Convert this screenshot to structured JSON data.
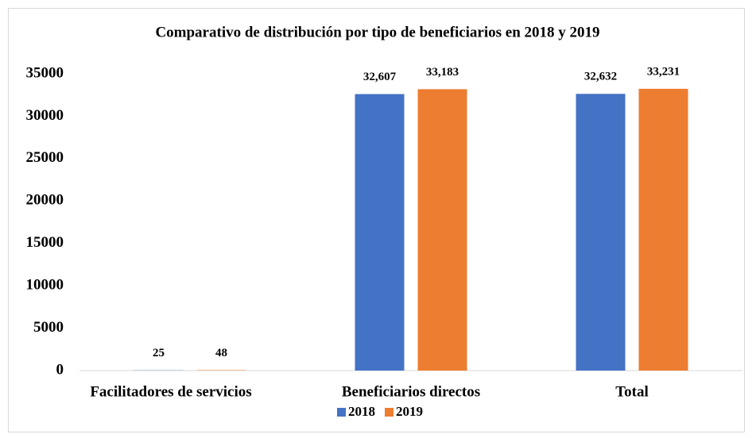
{
  "chart_data": {
    "type": "bar",
    "title": "Comparativo de distribución por tipo de beneficiarios en 2018 y 2019",
    "categories": [
      "Facilitadores de servicios",
      "Beneficiarios directos",
      "Total"
    ],
    "series": [
      {
        "name": "2018",
        "color": "#4472c4",
        "values": [
          25,
          32607,
          32632
        ],
        "value_labels": [
          "25",
          "32,607",
          "32,632"
        ]
      },
      {
        "name": "2019",
        "color": "#ed7d31",
        "values": [
          48,
          33183,
          33231
        ],
        "value_labels": [
          "48",
          "33,183",
          "33,231"
        ]
      }
    ],
    "ylim": [
      0,
      35000
    ],
    "yticks": [
      0,
      5000,
      10000,
      15000,
      20000,
      25000,
      30000,
      35000
    ],
    "grid": false,
    "legend": "bottom"
  }
}
